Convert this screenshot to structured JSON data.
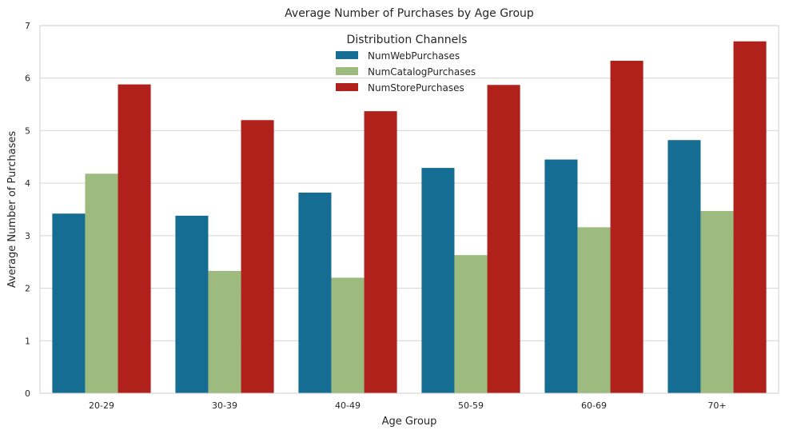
{
  "chart_data": {
    "type": "bar",
    "title": "Average Number of Purchases by Age Group",
    "xlabel": "Age Group",
    "ylabel": "Average Number of Purchases",
    "categories": [
      "20-29",
      "30-39",
      "40-49",
      "50-59",
      "60-69",
      "70+"
    ],
    "series": [
      {
        "name": "NumWebPurchases",
        "color": "#156d94",
        "values": [
          3.42,
          3.38,
          3.82,
          4.29,
          4.45,
          4.82
        ]
      },
      {
        "name": "NumCatalogPurchases",
        "color": "#9dba7f",
        "values": [
          4.18,
          2.33,
          2.2,
          2.63,
          3.16,
          3.47
        ]
      },
      {
        "name": "NumStorePurchases",
        "color": "#b0211c",
        "values": [
          5.88,
          5.2,
          5.37,
          5.87,
          6.33,
          6.7
        ]
      }
    ],
    "ylim": [
      0,
      7
    ],
    "yticks": [
      0,
      1,
      2,
      3,
      4,
      5,
      6,
      7
    ],
    "grid": "horizontal",
    "legend": {
      "title": "Distribution Channels",
      "placement": "top-center"
    }
  }
}
